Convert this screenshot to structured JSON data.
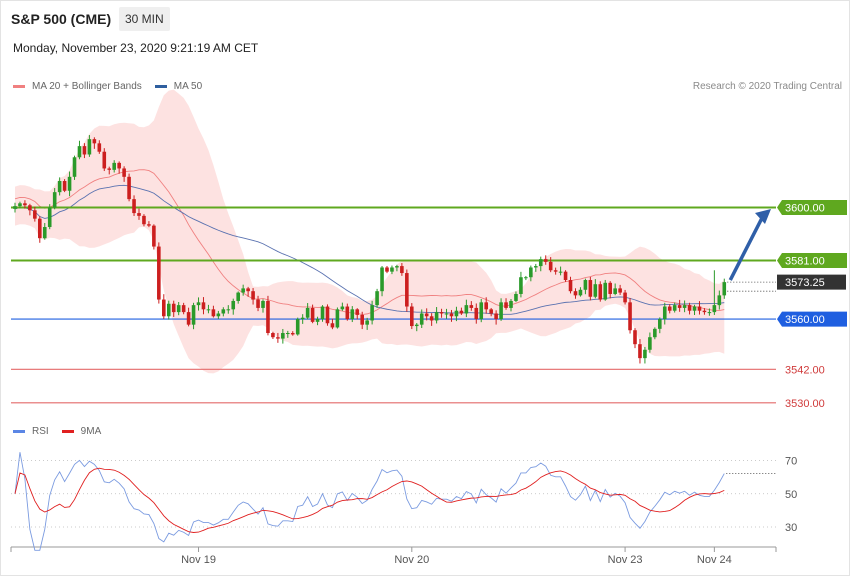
{
  "header": {
    "title": "S&P 500 (CME)",
    "interval": "30 MIN",
    "datetime": "Monday, November 23, 2020 9:21:19 AM CET",
    "credit": "Research © 2020 Trading Central"
  },
  "chart_data": [
    {
      "type": "candlestick",
      "legend": [
        {
          "label": "MA 20 + Bollinger Bands",
          "color": "#f08080"
        },
        {
          "label": "MA 50",
          "color": "#2f5f9f"
        }
      ],
      "x_ticks": [
        "Nov 19",
        "Nov 20",
        "Nov 23",
        "Nov 24"
      ],
      "y_range": [
        3524,
        3666
      ],
      "levels": [
        {
          "value": 3600.0,
          "label": "3600.00",
          "color": "#5fa81f",
          "style": "resistance"
        },
        {
          "value": 3581.0,
          "label": "3581.00",
          "color": "#5fa81f",
          "style": "resistance"
        },
        {
          "value": 3573.25,
          "label": "3573.25",
          "color": "#333333",
          "style": "last"
        },
        {
          "value": 3560.0,
          "label": "3560.00",
          "color": "#1f5fe0",
          "style": "pivot"
        },
        {
          "value": 3542.0,
          "label": "3542.00",
          "color": "#e46a6a",
          "style": "support"
        },
        {
          "value": 3530.0,
          "label": "3530.00",
          "color": "#e46a6a",
          "style": "support"
        }
      ],
      "last_price": 3573.25,
      "close": [
        3600.5,
        3601.5,
        3600.8,
        3599.0,
        3596.0,
        3589.0,
        3593.0,
        3600.0,
        3605.5,
        3609.5,
        3606.0,
        3611.0,
        3618.0,
        3622.0,
        3619.0,
        3624.5,
        3623.0,
        3620.0,
        3614.0,
        3613.5,
        3616.0,
        3614.0,
        3611.0,
        3603.0,
        3598.0,
        3597.0,
        3594.0,
        3593.5,
        3586.0,
        3567.0,
        3561.0,
        3565.5,
        3562.5,
        3565.0,
        3562.5,
        3558.0,
        3565.0,
        3566.0,
        3563.5,
        3563.5,
        3561.0,
        3562.0,
        3563.5,
        3563.5,
        3566.5,
        3569.5,
        3571.0,
        3570.0,
        3567.0,
        3564.0,
        3566.5,
        3555.0,
        3553.5,
        3553.0,
        3555.0,
        3555.0,
        3554.5,
        3560.0,
        3560.5,
        3564.0,
        3559.0,
        3560.0,
        3564.5,
        3558.5,
        3557.0,
        3563.5,
        3564.5,
        3560.0,
        3563.5,
        3561.5,
        3558.0,
        3559.5,
        3565.0,
        3570.0,
        3578.5,
        3577.0,
        3578.5,
        3579.0,
        3576.5,
        3564.5,
        3557.5,
        3558.0,
        3562.0,
        3561.0,
        3559.5,
        3562.5,
        3562.0,
        3562.0,
        3561.0,
        3563.0,
        3562.0,
        3565.0,
        3564.0,
        3560.0,
        3566.0,
        3563.5,
        3562.0,
        3560.0,
        3566.0,
        3564.0,
        3566.5,
        3569.0,
        3575.0,
        3575.0,
        3578.5,
        3579.0,
        3581.5,
        3580.5,
        3577.5,
        3577.0,
        3577.0,
        3574.0,
        3570.0,
        3568.5,
        3570.5,
        3574.0,
        3568.0,
        3572.5,
        3567.0,
        3573.0,
        3569.0,
        3571.0,
        3569.5,
        3566.0,
        3556.0,
        3551.0,
        3546.0,
        3549.0,
        3553.5,
        3556.5,
        3560.0,
        3564.5,
        3563.0,
        3565.0,
        3564.0,
        3565.0,
        3563.0,
        3564.5,
        3563.0,
        3562.5,
        3562.5,
        3565.0,
        3568.5,
        3573.25
      ],
      "ma20_last": 3563.4,
      "ma50_last": 3565.9
    },
    {
      "type": "line",
      "legend": [
        {
          "label": "RSI",
          "color": "#5b86e5"
        },
        {
          "label": "9MA",
          "color": "#e02020"
        }
      ],
      "y_ticks": [
        "70",
        "50",
        "30"
      ],
      "y_range": [
        14,
        76
      ]
    }
  ]
}
